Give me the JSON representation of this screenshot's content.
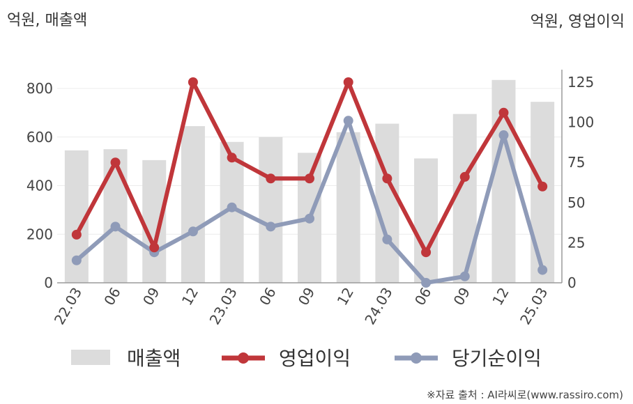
{
  "chart_data": {
    "type": "bar",
    "categories": [
      "22.03",
      "06",
      "09",
      "12",
      "23.03",
      "06",
      "09",
      "12",
      "24.03",
      "06",
      "09",
      "12",
      "25.03"
    ],
    "left_axis_unit": "억원, 매출액",
    "right_axis_unit": "억원, 영업이익",
    "ylim_left": [
      0,
      900
    ],
    "yticks_left": [
      "0",
      "200",
      "400",
      "600",
      "800"
    ],
    "ylim_right": [
      0,
      140
    ],
    "yticks_right": [
      "0",
      "25",
      "50",
      "75",
      "100",
      "125"
    ],
    "series": [
      {
        "name": "매출액",
        "type": "bar",
        "axis": "left",
        "color": "#dcdcdc",
        "values": [
          545,
          550,
          505,
          645,
          580,
          600,
          535,
          620,
          655,
          512,
          695,
          835,
          745
        ]
      },
      {
        "name": "영업이익",
        "type": "line",
        "axis": "right",
        "color": "#c0363a",
        "values": [
          30,
          75,
          22,
          125,
          78,
          65,
          65,
          125,
          65,
          19,
          66,
          106,
          60
        ]
      },
      {
        "name": "당기순이익",
        "type": "line",
        "axis": "right",
        "color": "#8f9bb8",
        "values": [
          14,
          35,
          19,
          32,
          47,
          35,
          40,
          101,
          27,
          0,
          4,
          92,
          8
        ]
      }
    ],
    "grid": true,
    "legend_position": "bottom",
    "source": "※자료 출처 : AI라씨로(www.rassiro.com)"
  }
}
